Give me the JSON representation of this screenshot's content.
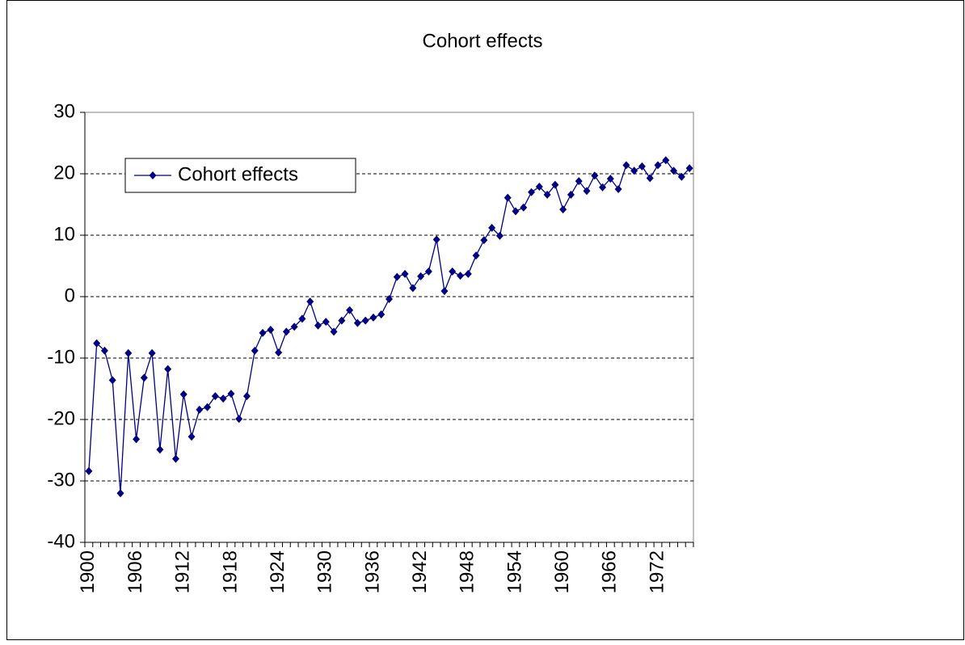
{
  "chart_data": {
    "type": "line",
    "title": "Cohort effects",
    "categories": [
      "1900",
      null,
      null,
      null,
      null,
      null,
      "1906",
      null,
      null,
      null,
      null,
      null,
      "1912",
      null,
      null,
      null,
      null,
      null,
      "1918",
      null,
      null,
      null,
      null,
      null,
      "1924",
      null,
      null,
      null,
      null,
      null,
      "1930",
      null,
      null,
      null,
      null,
      null,
      "1936",
      null,
      null,
      null,
      null,
      null,
      "1942",
      null,
      null,
      null,
      null,
      null,
      "1948",
      null,
      null,
      null,
      null,
      null,
      "1954",
      null,
      null,
      null,
      null,
      null,
      "1960",
      null,
      null,
      null,
      null,
      null,
      "1966",
      null,
      null,
      null,
      null,
      null,
      "1972",
      null,
      null,
      null,
      null
    ],
    "series": [
      {
        "name": "Cohort effects",
        "color": "#000080",
        "values": [
          -28.4,
          -7.6,
          -8.8,
          -13.6,
          -32,
          -9.2,
          -23.2,
          -13.2,
          -9.2,
          -24.9,
          -11.8,
          -26.4,
          -15.9,
          -22.8,
          -18.4,
          -18,
          -16.2,
          -16.6,
          -15.8,
          -19.9,
          -16.2,
          -8.8,
          -5.9,
          -5.4,
          -9.1,
          -5.7,
          -4.9,
          -3.6,
          -0.8,
          -4.7,
          -4.1,
          -5.7,
          -3.9,
          -2.2,
          -4.3,
          -3.9,
          -3.4,
          -2.9,
          -0.4,
          3.2,
          3.7,
          1.4,
          3.3,
          4.1,
          9.3,
          0.9,
          4.1,
          3.4,
          3.7,
          6.7,
          9.2,
          11.2,
          9.9,
          16.1,
          13.9,
          14.5,
          17,
          17.9,
          16.6,
          18.2,
          14.2,
          16.6,
          18.8,
          17.2,
          19.7,
          17.8,
          19.2,
          17.5,
          21.4,
          20.5,
          21.2,
          19.3,
          21.4,
          22.2,
          20.5,
          19.5,
          20.9
        ]
      }
    ],
    "ylim": [
      -40,
      30
    ],
    "yticks": [
      -40,
      -30,
      -20,
      -10,
      0,
      10,
      20,
      30
    ],
    "grid": true
  }
}
